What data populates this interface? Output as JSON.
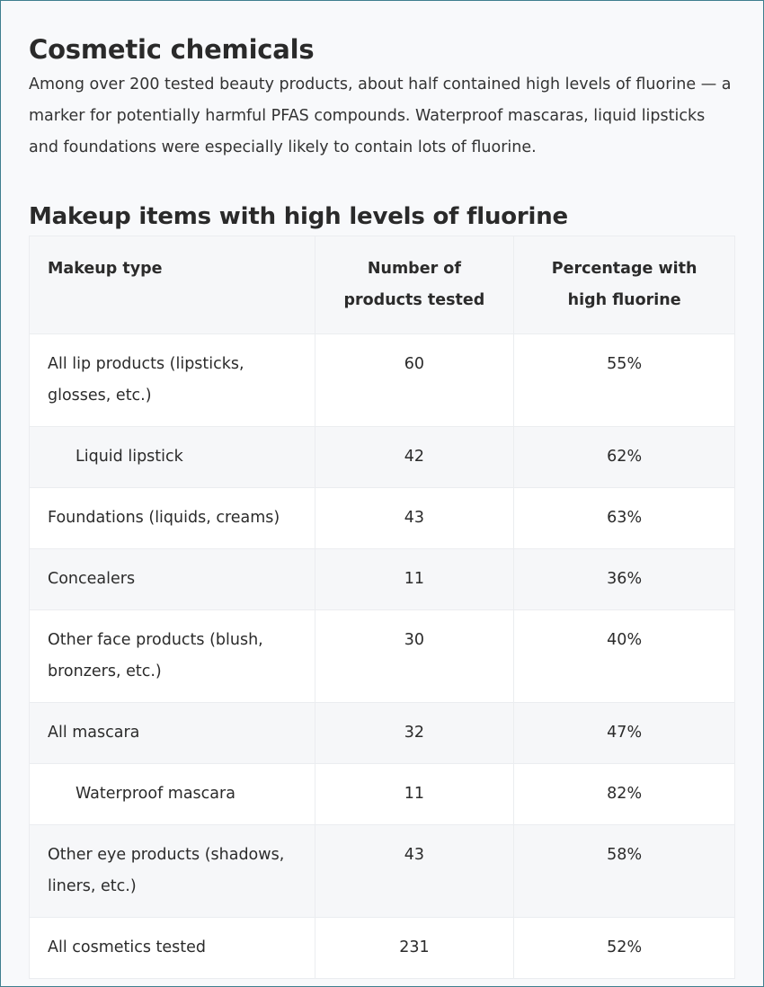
{
  "header": {
    "title": "Cosmetic chemicals",
    "intro": "Among over 200 tested beauty products, about half contained high levels of fluorine — a marker for potentially harmful PFAS compounds. Waterproof mascaras, liquid lipsticks and foundations were especially likely to contain lots of fluorine."
  },
  "colors": {
    "border": "#3f7f8f",
    "row_gray": "#f6f7f9",
    "row_white": "#ffffff"
  },
  "chart_data": {
    "type": "table",
    "title": "Makeup items with high levels of fluorine",
    "columns": [
      "Makeup type",
      "Number of products tested",
      "Percentage with high fluorine"
    ],
    "rows": [
      {
        "type": "All lip products (lipsticks, glosses, etc.)",
        "tested": "60",
        "pct": "55%",
        "indent": false
      },
      {
        "type": "Liquid lipstick",
        "tested": "42",
        "pct": "62%",
        "indent": true
      },
      {
        "type": "Foundations (liquids, creams)",
        "tested": "43",
        "pct": "63%",
        "indent": false
      },
      {
        "type": "Concealers",
        "tested": "11",
        "pct": "36%",
        "indent": false
      },
      {
        "type": "Other face products (blush, bronzers, etc.)",
        "tested": "30",
        "pct": "40%",
        "indent": false
      },
      {
        "type": "All mascara",
        "tested": "32",
        "pct": "47%",
        "indent": false
      },
      {
        "type": "Waterproof mascara",
        "tested": "11",
        "pct": "82%",
        "indent": true
      },
      {
        "type": "Other eye products (shadows, liners, etc.)",
        "tested": "43",
        "pct": "58%",
        "indent": false
      },
      {
        "type": "All cosmetics tested",
        "tested": "231",
        "pct": "52%",
        "indent": false
      }
    ]
  }
}
